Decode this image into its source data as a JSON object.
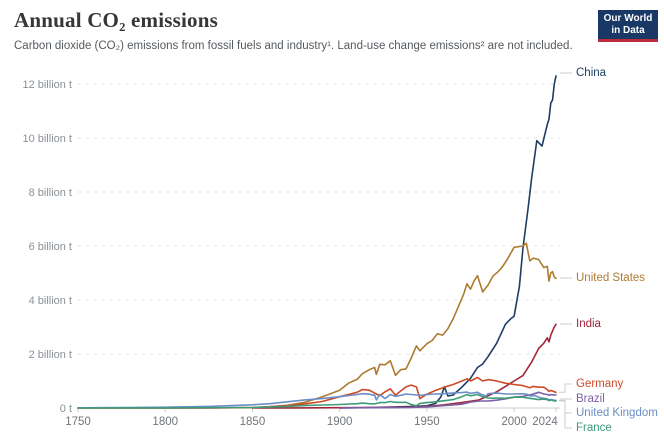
{
  "header": {
    "title": "Annual CO₂ emissions",
    "subtitle": "Carbon dioxide (CO₂) emissions from fossil fuels and industry¹. Land-use change emissions² are not included.",
    "logo": {
      "line1": "Our World",
      "line2": "in Data",
      "bg_color": "#1a3866",
      "stripe_color": "#bc2b3e"
    }
  },
  "chart_data": {
    "type": "line",
    "title": "Annual CO₂ emissions",
    "subtitle": "Carbon dioxide (CO₂) emissions from fossil fuels and industry¹. Land-use change emissions² are not included.",
    "xlabel": "",
    "ylabel": "",
    "unit": "billion t",
    "xlim": [
      1750,
      2024
    ],
    "ylim": [
      0,
      12
    ],
    "grid": "dashed-horizontal",
    "legend_position": "right-edge-labels",
    "x_ticks": [
      1750,
      1800,
      1850,
      1900,
      1950,
      2000,
      2024
    ],
    "y_ticks": [
      {
        "value": 0,
        "label": "0 t"
      },
      {
        "value": 2,
        "label": "2 billion t"
      },
      {
        "value": 4,
        "label": "4 billion t"
      },
      {
        "value": 6,
        "label": "6 billion t"
      },
      {
        "value": 8,
        "label": "8 billion t"
      },
      {
        "value": 10,
        "label": "10 billion t"
      },
      {
        "value": 12,
        "label": "12 billion t"
      }
    ],
    "series": [
      {
        "name": "China",
        "color": "#1d3d63",
        "x": [
          1900,
          1920,
          1940,
          1950,
          1955,
          1958,
          1960,
          1962,
          1965,
          1970,
          1975,
          1979,
          1982,
          1985,
          1990,
          1995,
          1998,
          2000,
          2003,
          2005,
          2008,
          2010,
          2013,
          2016,
          2019,
          2020,
          2021,
          2022,
          2023,
          2024
        ],
        "values": [
          0.005,
          0.02,
          0.05,
          0.08,
          0.17,
          0.41,
          0.79,
          0.45,
          0.48,
          0.77,
          1.1,
          1.5,
          1.63,
          1.9,
          2.4,
          3.1,
          3.3,
          3.4,
          4.5,
          5.9,
          7.4,
          8.5,
          9.9,
          9.7,
          10.5,
          10.7,
          11.3,
          11.4,
          12.0,
          12.3
        ]
      },
      {
        "name": "United States",
        "color": "#ad7b32",
        "x": [
          1750,
          1800,
          1825,
          1850,
          1860,
          1870,
          1880,
          1890,
          1900,
          1905,
          1910,
          1913,
          1917,
          1920,
          1921,
          1923,
          1926,
          1929,
          1932,
          1935,
          1938,
          1941,
          1944,
          1946,
          1950,
          1953,
          1956,
          1959,
          1962,
          1965,
          1968,
          1971,
          1973,
          1975,
          1977,
          1979,
          1982,
          1985,
          1988,
          1990,
          1993,
          1996,
          2000,
          2005,
          2007,
          2009,
          2011,
          2014,
          2017,
          2019,
          2020,
          2021,
          2022,
          2023,
          2024
        ],
        "values": [
          0,
          0.0003,
          0.002,
          0.02,
          0.05,
          0.1,
          0.21,
          0.41,
          0.66,
          0.92,
          1.06,
          1.27,
          1.42,
          1.5,
          1.25,
          1.62,
          1.6,
          1.75,
          1.21,
          1.42,
          1.45,
          1.85,
          2.3,
          2.12,
          2.38,
          2.5,
          2.75,
          2.7,
          2.93,
          3.3,
          3.75,
          4.2,
          4.6,
          4.4,
          4.7,
          4.9,
          4.3,
          4.55,
          4.9,
          5.0,
          5.2,
          5.5,
          5.95,
          6.0,
          6.1,
          5.45,
          5.55,
          5.5,
          5.2,
          5.25,
          4.7,
          5.0,
          5.05,
          4.85,
          4.8
        ]
      },
      {
        "name": "India",
        "color": "#a2273c",
        "x": [
          1850,
          1875,
          1900,
          1920,
          1940,
          1950,
          1960,
          1970,
          1980,
          1990,
          1995,
          2000,
          2005,
          2010,
          2014,
          2017,
          2019,
          2020,
          2021,
          2022,
          2023,
          2024
        ],
        "values": [
          0,
          0.002,
          0.01,
          0.02,
          0.03,
          0.06,
          0.12,
          0.2,
          0.3,
          0.6,
          0.8,
          1.0,
          1.2,
          1.7,
          2.2,
          2.4,
          2.6,
          2.45,
          2.7,
          2.85,
          3.0,
          3.1
        ]
      },
      {
        "name": "Germany",
        "color": "#cc4b27",
        "x": [
          1750,
          1800,
          1825,
          1850,
          1860,
          1870,
          1880,
          1890,
          1900,
          1905,
          1910,
          1913,
          1917,
          1920,
          1923,
          1926,
          1929,
          1932,
          1935,
          1938,
          1941,
          1944,
          1946,
          1950,
          1955,
          1960,
          1965,
          1970,
          1973,
          1975,
          1979,
          1982,
          1985,
          1990,
          1995,
          2000,
          2005,
          2009,
          2011,
          2014,
          2017,
          2019,
          2020,
          2021,
          2022,
          2023,
          2024
        ],
        "values": [
          0,
          0.002,
          0.005,
          0.015,
          0.04,
          0.09,
          0.15,
          0.24,
          0.42,
          0.5,
          0.58,
          0.68,
          0.66,
          0.55,
          0.46,
          0.6,
          0.71,
          0.47,
          0.63,
          0.78,
          0.85,
          0.78,
          0.35,
          0.51,
          0.65,
          0.77,
          0.87,
          1.0,
          1.08,
          1.0,
          1.13,
          1.0,
          1.05,
          1.0,
          0.92,
          0.87,
          0.83,
          0.75,
          0.8,
          0.77,
          0.77,
          0.68,
          0.61,
          0.65,
          0.63,
          0.6,
          0.58
        ]
      },
      {
        "name": "Brazil",
        "color": "#7d5fa7",
        "x": [
          1900,
          1920,
          1940,
          1950,
          1960,
          1970,
          1975,
          1980,
          1985,
          1990,
          1995,
          2000,
          2005,
          2010,
          2014,
          2017,
          2019,
          2020,
          2021,
          2022,
          2023,
          2024
        ],
        "values": [
          0.001,
          0.01,
          0.02,
          0.04,
          0.09,
          0.14,
          0.22,
          0.26,
          0.26,
          0.29,
          0.34,
          0.4,
          0.43,
          0.5,
          0.58,
          0.52,
          0.5,
          0.47,
          0.5,
          0.49,
          0.48,
          0.48
        ]
      },
      {
        "name": "United Kingdom",
        "color": "#6b8ec6",
        "x": [
          1750,
          1775,
          1800,
          1825,
          1850,
          1860,
          1870,
          1880,
          1890,
          1900,
          1910,
          1913,
          1917,
          1920,
          1921,
          1923,
          1926,
          1929,
          1932,
          1935,
          1938,
          1944,
          1947,
          1950,
          1955,
          1960,
          1965,
          1970,
          1973,
          1975,
          1979,
          1981,
          1984,
          1985,
          1990,
          1995,
          2000,
          2005,
          2008,
          2009,
          2012,
          2014,
          2016,
          2019,
          2020,
          2021,
          2022,
          2023,
          2024
        ],
        "values": [
          0.009,
          0.013,
          0.03,
          0.06,
          0.12,
          0.16,
          0.23,
          0.3,
          0.35,
          0.42,
          0.5,
          0.53,
          0.51,
          0.47,
          0.3,
          0.5,
          0.35,
          0.5,
          0.43,
          0.47,
          0.52,
          0.48,
          0.47,
          0.5,
          0.52,
          0.53,
          0.56,
          0.57,
          0.59,
          0.54,
          0.58,
          0.51,
          0.44,
          0.53,
          0.55,
          0.52,
          0.52,
          0.53,
          0.5,
          0.45,
          0.46,
          0.4,
          0.37,
          0.34,
          0.3,
          0.31,
          0.3,
          0.29,
          0.28
        ]
      },
      {
        "name": "France",
        "color": "#3d9c78",
        "x": [
          1750,
          1800,
          1825,
          1850,
          1860,
          1870,
          1880,
          1890,
          1900,
          1910,
          1913,
          1917,
          1920,
          1923,
          1926,
          1929,
          1932,
          1935,
          1938,
          1941,
          1944,
          1946,
          1950,
          1955,
          1960,
          1965,
          1970,
          1973,
          1975,
          1979,
          1982,
          1985,
          1988,
          1990,
          1995,
          2000,
          2005,
          2009,
          2011,
          2014,
          2017,
          2019,
          2020,
          2021,
          2022,
          2023,
          2024
        ],
        "values": [
          0.001,
          0.005,
          0.01,
          0.02,
          0.04,
          0.06,
          0.09,
          0.11,
          0.13,
          0.16,
          0.18,
          0.16,
          0.15,
          0.2,
          0.2,
          0.24,
          0.21,
          0.21,
          0.21,
          0.13,
          0.08,
          0.17,
          0.2,
          0.23,
          0.27,
          0.31,
          0.42,
          0.5,
          0.45,
          0.5,
          0.42,
          0.37,
          0.36,
          0.37,
          0.36,
          0.4,
          0.4,
          0.36,
          0.34,
          0.31,
          0.33,
          0.31,
          0.27,
          0.3,
          0.28,
          0.26,
          0.26
        ]
      }
    ]
  }
}
